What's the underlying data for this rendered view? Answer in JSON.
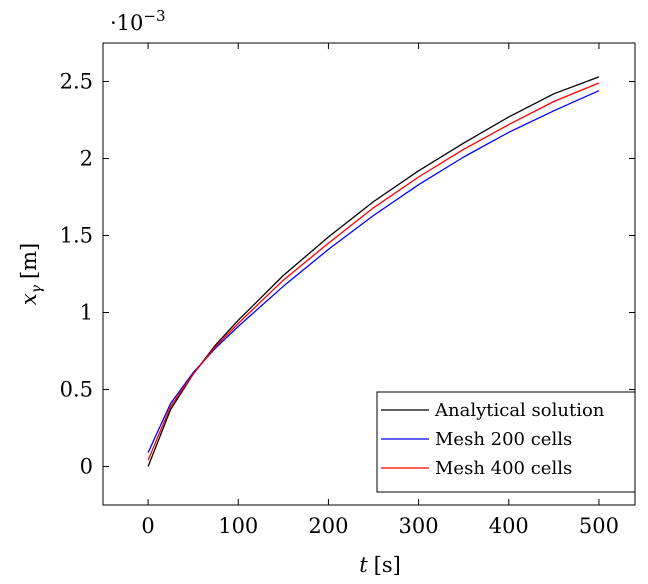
{
  "chart_data": {
    "type": "line",
    "xlabel_var": "t",
    "xlabel_unit": "[s]",
    "ylabel_var": "x",
    "ylabel_sub": "γ",
    "ylabel_unit": "[m]",
    "y_multiplier_base": "·10",
    "y_multiplier_exp": "−3",
    "xlim": [
      -50,
      540
    ],
    "ylim": [
      -0.25,
      2.75
    ],
    "x_ticks": [
      0,
      100,
      200,
      300,
      400,
      500
    ],
    "x_tick_labels": [
      "0",
      "100",
      "200",
      "300",
      "400",
      "500"
    ],
    "y_ticks": [
      0,
      0.5,
      1,
      1.5,
      2,
      2.5
    ],
    "y_tick_labels": [
      "0",
      "0.5",
      "1",
      "1.5",
      "2",
      "2.5"
    ],
    "grid": false,
    "legend_position": "bottom-right",
    "series": [
      {
        "name": "Analytical solution",
        "color": "#000000",
        "x": [
          0,
          25,
          50,
          75,
          100,
          150,
          200,
          250,
          300,
          350,
          400,
          450,
          500
        ],
        "y": [
          0.0,
          0.37,
          0.6,
          0.79,
          0.95,
          1.24,
          1.49,
          1.72,
          1.92,
          2.1,
          2.27,
          2.42,
          2.53
        ]
      },
      {
        "name": "Mesh 200 cells",
        "color": "#0000ff",
        "x": [
          0,
          25,
          50,
          75,
          100,
          150,
          200,
          250,
          300,
          350,
          400,
          450,
          500
        ],
        "y": [
          0.09,
          0.41,
          0.61,
          0.77,
          0.91,
          1.17,
          1.41,
          1.63,
          1.83,
          2.01,
          2.17,
          2.31,
          2.44
        ]
      },
      {
        "name": "Mesh 400 cells",
        "color": "#ff0000",
        "x": [
          0,
          25,
          50,
          75,
          100,
          150,
          200,
          250,
          300,
          350,
          400,
          450,
          500
        ],
        "y": [
          0.04,
          0.39,
          0.6,
          0.78,
          0.93,
          1.21,
          1.45,
          1.68,
          1.88,
          2.06,
          2.22,
          2.37,
          2.49
        ]
      }
    ]
  }
}
